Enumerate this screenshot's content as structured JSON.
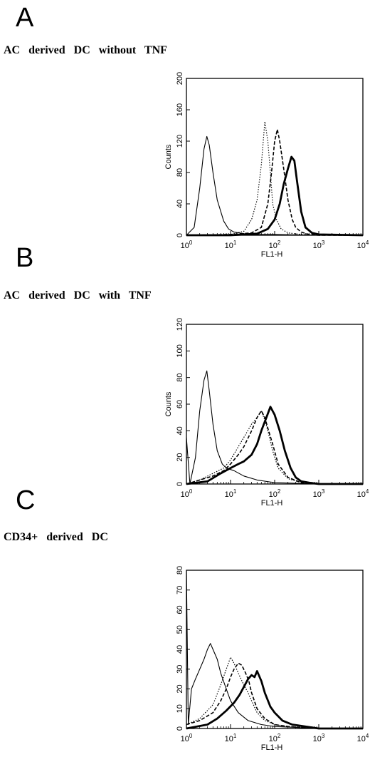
{
  "panels": [
    {
      "letter": "A",
      "title": "AC derived DC without TNF"
    },
    {
      "letter": "B",
      "title": "AC derived DC with TNF"
    },
    {
      "letter": "C",
      "title": "CD34+ derived DC"
    }
  ],
  "chart_data": [
    {
      "type": "line",
      "xlabel": "FL1-H",
      "ylabel": "Counts",
      "xscale": "log",
      "xlim": [
        1,
        10000
      ],
      "ylim": [
        0,
        200
      ],
      "yticks": [
        0,
        40,
        80,
        120,
        160,
        200
      ],
      "xticks": [
        "10⁰",
        "10¹",
        "10²",
        "10³",
        "10⁴"
      ],
      "series": [
        {
          "style": "thin-solid",
          "x": [
            1.0,
            1.5,
            2.0,
            2.5,
            2.9,
            3.3,
            4.0,
            5.0,
            7.0,
            9.0,
            12,
            20,
            40,
            100,
            1000,
            10000
          ],
          "y": [
            0,
            10,
            60,
            110,
            126,
            115,
            80,
            45,
            18,
            8,
            4,
            2,
            1,
            1,
            0,
            0
          ]
        },
        {
          "style": "dotted",
          "x": [
            1.0,
            10,
            20,
            30,
            40,
            50,
            60,
            70,
            80,
            90,
            110,
            140,
            200,
            400,
            1000,
            10000
          ],
          "y": [
            0,
            1,
            5,
            20,
            45,
            90,
            145,
            120,
            80,
            40,
            20,
            8,
            3,
            1,
            0,
            0
          ]
        },
        {
          "style": "dashed",
          "x": [
            1.0,
            10,
            30,
            50,
            70,
            85,
            100,
            115,
            130,
            160,
            200,
            250,
            300,
            400,
            600,
            1000,
            10000
          ],
          "y": [
            0,
            1,
            3,
            10,
            40,
            80,
            120,
            135,
            120,
            85,
            45,
            20,
            10,
            4,
            1,
            0,
            0
          ]
        },
        {
          "style": "thick-solid",
          "x": [
            1.0,
            10,
            40,
            70,
            100,
            130,
            160,
            200,
            240,
            280,
            320,
            400,
            500,
            700,
            1000,
            10000
          ],
          "y": [
            0,
            0,
            2,
            8,
            20,
            40,
            65,
            85,
            100,
            95,
            70,
            30,
            10,
            3,
            1,
            0
          ]
        }
      ]
    },
    {
      "type": "line",
      "xlabel": "FL1-H",
      "ylabel": "Counts",
      "xscale": "log",
      "xlim": [
        1,
        10000
      ],
      "ylim": [
        0,
        120
      ],
      "yticks": [
        0,
        20,
        40,
        60,
        80,
        100,
        120
      ],
      "xticks": [
        "10⁰",
        "10¹",
        "10²",
        "10³",
        "10⁴"
      ],
      "series": [
        {
          "style": "thin-solid",
          "x": [
            1.0,
            1.2,
            1.6,
            2.0,
            2.5,
            2.9,
            3.3,
            4.0,
            5.0,
            6.5,
            8.0,
            12,
            20,
            40,
            100,
            1000,
            10000
          ],
          "y": [
            35,
            0,
            20,
            55,
            78,
            85,
            70,
            45,
            25,
            15,
            12,
            10,
            6,
            3,
            1,
            0,
            0
          ]
        },
        {
          "style": "dotted",
          "x": [
            1.0,
            2.0,
            4.0,
            7.0,
            10,
            15,
            20,
            30,
            40,
            50,
            60,
            70,
            90,
            120,
            200,
            400,
            1000,
            10000
          ],
          "y": [
            0,
            3,
            8,
            12,
            18,
            28,
            35,
            45,
            50,
            55,
            48,
            40,
            25,
            12,
            4,
            1,
            0,
            0
          ]
        },
        {
          "style": "dashed",
          "x": [
            1.0,
            2.0,
            4.0,
            7.0,
            10,
            15,
            20,
            30,
            40,
            50,
            60,
            70,
            90,
            120,
            200,
            400,
            1000,
            10000
          ],
          "y": [
            0,
            3,
            6,
            10,
            15,
            22,
            28,
            40,
            50,
            55,
            50,
            42,
            30,
            15,
            5,
            1,
            0,
            0
          ]
        },
        {
          "style": "thick-solid",
          "x": [
            1.0,
            3.0,
            6.0,
            10,
            15,
            20,
            30,
            40,
            50,
            65,
            80,
            100,
            130,
            170,
            230,
            300,
            400,
            600,
            1000,
            10000
          ],
          "y": [
            0,
            2,
            8,
            12,
            15,
            17,
            22,
            30,
            40,
            50,
            58,
            52,
            40,
            25,
            12,
            5,
            2,
            1,
            0,
            0
          ]
        }
      ]
    },
    {
      "type": "line",
      "xlabel": "FL1-H",
      "ylabel": "",
      "xscale": "log",
      "xlim": [
        1,
        10000
      ],
      "ylim": [
        0,
        80
      ],
      "yticks": [
        0,
        10,
        20,
        30,
        40,
        50,
        60,
        70,
        80
      ],
      "xticks": [
        "10⁰",
        "10¹",
        "10²",
        "10³",
        "10⁴"
      ],
      "series": [
        {
          "style": "thin-solid",
          "x": [
            1.0,
            1.1,
            1.3,
            1.6,
            2.0,
            2.5,
            3.0,
            3.5,
            4.0,
            5.0,
            6.0,
            8.0,
            10,
            15,
            25,
            50,
            100,
            1000,
            10000
          ],
          "y": [
            80,
            2,
            20,
            25,
            30,
            35,
            40,
            43,
            40,
            35,
            28,
            20,
            14,
            8,
            4,
            2,
            1,
            0,
            0
          ]
        },
        {
          "style": "dotted",
          "x": [
            1.0,
            2.0,
            4.0,
            6.0,
            8.0,
            10,
            12,
            15,
            20,
            25,
            30,
            40,
            60,
            100,
            200,
            1000,
            10000
          ],
          "y": [
            2,
            5,
            12,
            22,
            30,
            36,
            33,
            28,
            22,
            18,
            14,
            8,
            4,
            2,
            1,
            0,
            0
          ]
        },
        {
          "style": "dashed",
          "x": [
            1.0,
            2.0,
            4.0,
            6.0,
            8.0,
            10,
            12,
            15,
            18,
            22,
            26,
            30,
            40,
            60,
            100,
            200,
            1000,
            10000
          ],
          "y": [
            2,
            4,
            8,
            14,
            20,
            26,
            30,
            33,
            32,
            28,
            24,
            18,
            10,
            5,
            2,
            1,
            0,
            0
          ]
        },
        {
          "style": "thick-solid",
          "x": [
            1.0,
            3.0,
            5.0,
            8.0,
            12,
            16,
            20,
            25,
            30,
            35,
            40,
            50,
            60,
            80,
            100,
            150,
            250,
            500,
            1000,
            10000
          ],
          "y": [
            0,
            2,
            5,
            9,
            13,
            17,
            21,
            25,
            27,
            26,
            29,
            24,
            18,
            11,
            8,
            4,
            2,
            1,
            0,
            0
          ]
        }
      ]
    }
  ]
}
